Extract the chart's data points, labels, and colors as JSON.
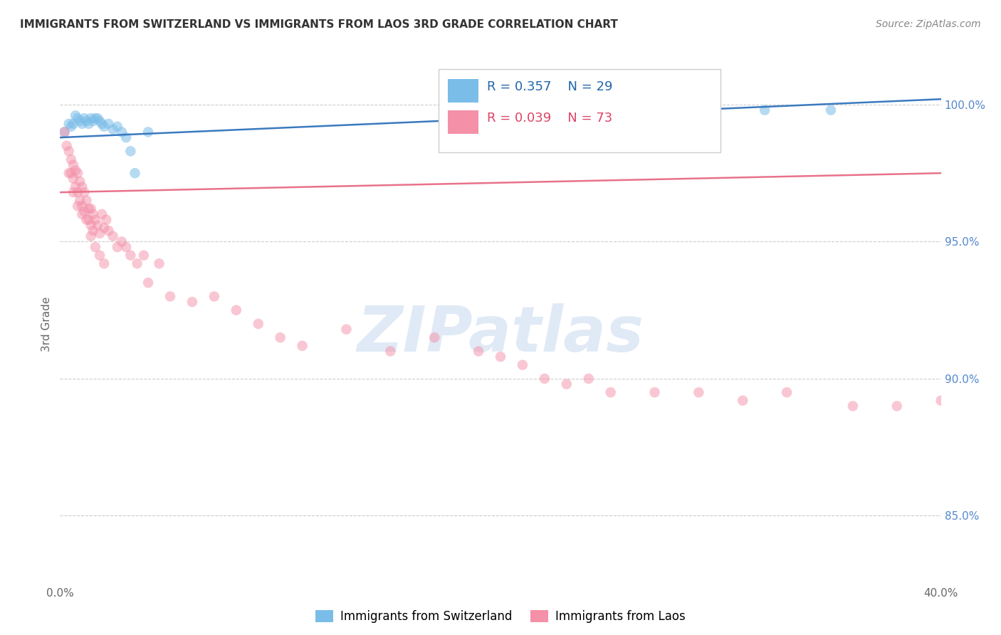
{
  "title": "IMMIGRANTS FROM SWITZERLAND VS IMMIGRANTS FROM LAOS 3RD GRADE CORRELATION CHART",
  "source": "Source: ZipAtlas.com",
  "ylabel": "3rd Grade",
  "ytick_labels": [
    "100.0%",
    "95.0%",
    "90.0%",
    "85.0%"
  ],
  "ytick_values": [
    1.0,
    0.95,
    0.9,
    0.85
  ],
  "xlim": [
    0.0,
    0.4
  ],
  "ylim": [
    0.825,
    1.015
  ],
  "legend_blue_r": "R = 0.357",
  "legend_blue_n": "N = 29",
  "legend_pink_r": "R = 0.039",
  "legend_pink_n": "N = 73",
  "legend_label_blue": "Immigrants from Switzerland",
  "legend_label_pink": "Immigrants from Laos",
  "blue_color": "#7abde8",
  "pink_color": "#f490a8",
  "blue_line_color": "#3a7abf",
  "pink_line_color": "#e8728a",
  "blue_scatter_x": [
    0.002,
    0.004,
    0.005,
    0.006,
    0.007,
    0.008,
    0.009,
    0.01,
    0.011,
    0.012,
    0.013,
    0.014,
    0.015,
    0.016,
    0.017,
    0.018,
    0.019,
    0.02,
    0.022,
    0.024,
    0.026,
    0.028,
    0.03,
    0.032,
    0.034,
    0.22,
    0.32,
    0.35,
    0.04
  ],
  "blue_scatter_y": [
    0.99,
    0.993,
    0.992,
    0.993,
    0.996,
    0.995,
    0.994,
    0.993,
    0.995,
    0.994,
    0.993,
    0.995,
    0.994,
    0.995,
    0.995,
    0.994,
    0.993,
    0.992,
    0.993,
    0.991,
    0.992,
    0.99,
    0.988,
    0.983,
    0.975,
    1.0,
    0.998,
    0.998,
    0.99
  ],
  "pink_scatter_x": [
    0.002,
    0.003,
    0.004,
    0.005,
    0.005,
    0.006,
    0.006,
    0.007,
    0.007,
    0.008,
    0.008,
    0.009,
    0.009,
    0.01,
    0.01,
    0.011,
    0.011,
    0.012,
    0.013,
    0.013,
    0.014,
    0.014,
    0.015,
    0.015,
    0.016,
    0.017,
    0.018,
    0.019,
    0.02,
    0.021,
    0.022,
    0.024,
    0.026,
    0.028,
    0.03,
    0.032,
    0.035,
    0.038,
    0.04,
    0.045,
    0.05,
    0.06,
    0.07,
    0.08,
    0.09,
    0.1,
    0.11,
    0.13,
    0.15,
    0.17,
    0.19,
    0.2,
    0.21,
    0.22,
    0.23,
    0.24,
    0.25,
    0.27,
    0.29,
    0.31,
    0.33,
    0.36,
    0.38,
    0.4,
    0.004,
    0.006,
    0.008,
    0.01,
    0.012,
    0.014,
    0.016,
    0.018,
    0.02
  ],
  "pink_scatter_y": [
    0.99,
    0.985,
    0.983,
    0.98,
    0.975,
    0.978,
    0.973,
    0.976,
    0.97,
    0.975,
    0.968,
    0.972,
    0.965,
    0.97,
    0.963,
    0.968,
    0.961,
    0.965,
    0.962,
    0.958,
    0.962,
    0.956,
    0.96,
    0.954,
    0.958,
    0.956,
    0.953,
    0.96,
    0.955,
    0.958,
    0.954,
    0.952,
    0.948,
    0.95,
    0.948,
    0.945,
    0.942,
    0.945,
    0.935,
    0.942,
    0.93,
    0.928,
    0.93,
    0.925,
    0.92,
    0.915,
    0.912,
    0.918,
    0.91,
    0.915,
    0.91,
    0.908,
    0.905,
    0.9,
    0.898,
    0.9,
    0.895,
    0.895,
    0.895,
    0.892,
    0.895,
    0.89,
    0.89,
    0.892,
    0.975,
    0.968,
    0.963,
    0.96,
    0.958,
    0.952,
    0.948,
    0.945,
    0.942
  ],
  "blue_trend_x": [
    0.0,
    0.4
  ],
  "blue_trend_y": [
    0.988,
    1.002
  ],
  "pink_trend_x": [
    0.0,
    0.4
  ],
  "pink_trend_y": [
    0.968,
    0.975
  ]
}
